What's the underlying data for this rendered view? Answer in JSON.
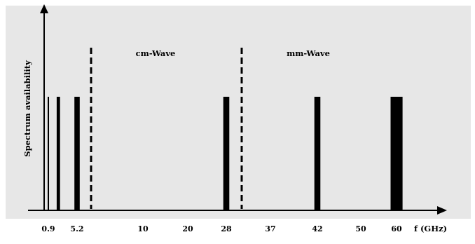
{
  "colors": {
    "background": "#ffffff",
    "plot_area": "#e7e7e7",
    "bars": "#000000",
    "axes": "#000000"
  },
  "chart_data": {
    "type": "bar",
    "title": "",
    "xlabel": "f (GHz)",
    "ylabel": "Spectrum availability",
    "x_axis_scale": "categorical (non-linear)",
    "grid": false,
    "legend": "none",
    "ticks": [
      "0.9",
      "5.2",
      "10",
      "20",
      "28",
      "37",
      "42",
      "50",
      "60"
    ],
    "bands": [
      {
        "label": "0.9",
        "center_ghz": 0.9,
        "relative_width": 0.2,
        "value": 1
      },
      {
        "label": "",
        "center_ghz": 2.4,
        "relative_width": 0.5,
        "value": 1
      },
      {
        "label": "5.2",
        "center_ghz": 5.2,
        "relative_width": 0.8,
        "value": 1
      },
      {
        "label": "28",
        "center_ghz": 28,
        "relative_width": 0.9,
        "value": 1
      },
      {
        "label": "42",
        "center_ghz": 42,
        "relative_width": 0.9,
        "value": 1
      },
      {
        "label": "60",
        "center_ghz": 60,
        "relative_width": 1.8,
        "value": 1
      }
    ],
    "dividers": [
      {
        "position_ghz": 6
      },
      {
        "position_ghz": 31
      }
    ],
    "regions": [
      {
        "label": "cm-Wave"
      },
      {
        "label": "mm-Wave"
      }
    ]
  }
}
